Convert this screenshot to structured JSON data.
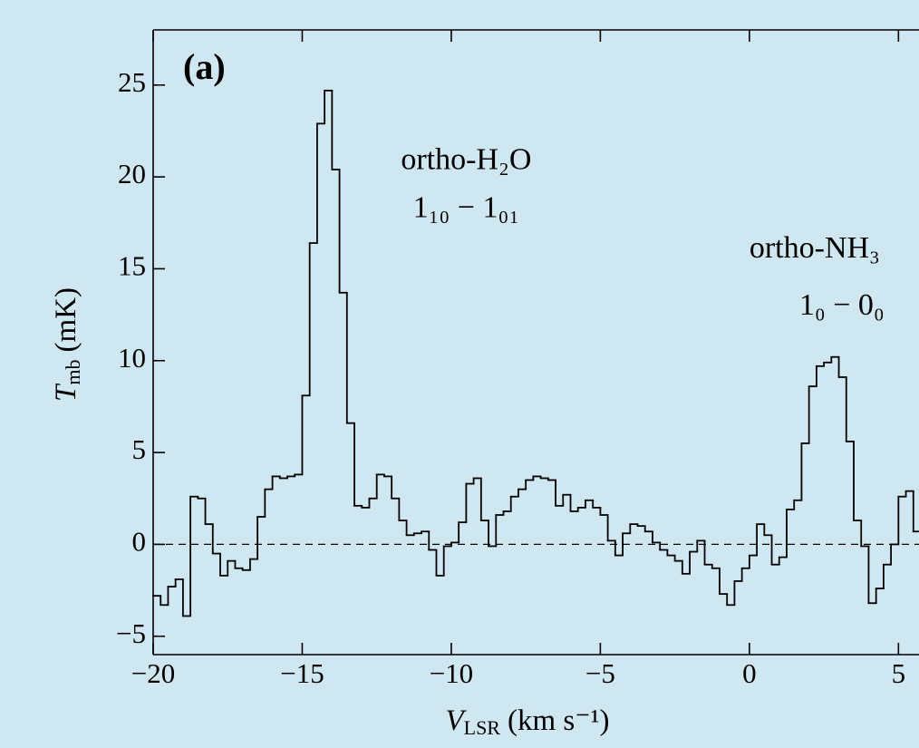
{
  "chart_data": {
    "type": "step",
    "panel_label": "(a)",
    "annotations": [
      {
        "text": "ortho-H₂O",
        "x": -9.5,
        "y": 20.8
      },
      {
        "text": "1₁₀ − 1₀₁",
        "x": -9.5,
        "y": 18.2
      },
      {
        "text": "ortho-NH₃",
        "x": 0,
        "y": 16,
        "anchor": "start"
      },
      {
        "text": "1₀ − 0₀",
        "x": 3.1,
        "y": 12.9
      }
    ],
    "xlabel": {
      "symbol": "V",
      "sub": "LSR",
      "unit": "(km s⁻¹)"
    },
    "ylabel": {
      "symbol": "T",
      "sub": "mb",
      "unit": "(mK)"
    },
    "color": "#000000",
    "xlim": [
      -20,
      5.75
    ],
    "ylim": [
      -6,
      28
    ],
    "xticks": [
      {
        "value": -20,
        "label": "−20"
      },
      {
        "value": -15,
        "label": "−15"
      },
      {
        "value": -10,
        "label": "−10"
      },
      {
        "value": -5,
        "label": "−5"
      },
      0,
      5
    ],
    "yticks": [
      {
        "value": -5,
        "label": "−5"
      },
      0,
      5,
      10,
      15,
      20,
      25
    ],
    "x": [
      -19.875,
      -19.625,
      -19.375,
      -19.125,
      -18.875,
      -18.625,
      -18.375,
      -18.125,
      -17.875,
      -17.625,
      -17.375,
      -17.125,
      -16.875,
      -16.625,
      -16.375,
      -16.125,
      -15.875,
      -15.625,
      -15.375,
      -15.125,
      -14.875,
      -14.625,
      -14.375,
      -14.125,
      -13.875,
      -13.625,
      -13.375,
      -13.125,
      -12.875,
      -12.625,
      -12.375,
      -12.125,
      -11.875,
      -11.625,
      -11.375,
      -11.125,
      -10.875,
      -10.625,
      -10.375,
      -10.125,
      -9.875,
      -9.625,
      -9.375,
      -9.125,
      -8.875,
      -8.625,
      -8.375,
      -8.125,
      -7.875,
      -7.625,
      -7.375,
      -7.125,
      -6.875,
      -6.625,
      -6.375,
      -6.125,
      -5.875,
      -5.625,
      -5.375,
      -5.125,
      -4.875,
      -4.625,
      -4.375,
      -4.125,
      -3.875,
      -3.625,
      -3.375,
      -3.125,
      -2.875,
      -2.625,
      -2.375,
      -2.125,
      -1.875,
      -1.625,
      -1.375,
      -1.125,
      -0.875,
      -0.625,
      -0.375,
      -0.125,
      0.125,
      0.375,
      0.625,
      0.875,
      1.125,
      1.375,
      1.625,
      1.875,
      2.125,
      2.375,
      2.625,
      2.875,
      3.125,
      3.375,
      3.625,
      3.875,
      4.125,
      4.375,
      4.625,
      4.875,
      5.125,
      5.375,
      5.625
    ],
    "values": [
      -2.8,
      -3.3,
      -2.3,
      -1.9,
      -3.9,
      2.6,
      2.5,
      1.1,
      -0.5,
      -1.7,
      -0.9,
      -1.3,
      -1.4,
      -0.8,
      1.5,
      3.0,
      3.7,
      3.6,
      3.7,
      3.8,
      8.1,
      16.4,
      22.9,
      24.7,
      20.4,
      13.7,
      6.6,
      2.1,
      2.0,
      2.5,
      3.8,
      3.7,
      2.5,
      1.3,
      0.5,
      0.6,
      0.7,
      -0.3,
      -1.7,
      -0.1,
      0.1,
      1.2,
      3.3,
      3.6,
      1.3,
      -0.1,
      1.6,
      1.8,
      2.6,
      3.0,
      3.5,
      3.7,
      3.6,
      3.5,
      2.1,
      2.7,
      1.8,
      2.0,
      2.4,
      2.0,
      1.6,
      0.2,
      -0.6,
      0.6,
      1.1,
      1.0,
      0.7,
      0.1,
      -0.3,
      -0.6,
      -0.9,
      -1.6,
      -0.4,
      0.2,
      -1.1,
      -1.3,
      -2.7,
      -3.3,
      -2.0,
      -1.3,
      -0.6,
      1.1,
      0.5,
      -1.1,
      -0.7,
      1.9,
      2.4,
      5.5,
      8.6,
      9.7,
      9.9,
      10.2,
      9.1,
      5.6,
      1.3,
      -0.1,
      -3.2,
      -2.4,
      -1.1,
      0,
      2.6,
      2.9,
      0.7
    ]
  }
}
